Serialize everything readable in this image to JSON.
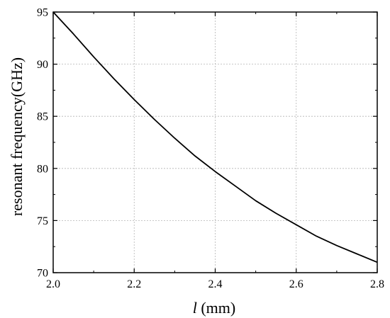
{
  "chart_data": {
    "type": "line",
    "title": "",
    "xlabel_var": "l",
    "xlabel_unit": " (mm)",
    "ylabel": "resonant frequency(GHz)",
    "xlim": [
      2.0,
      2.8
    ],
    "ylim": [
      70,
      95
    ],
    "xticks": [
      2.0,
      2.2,
      2.4,
      2.6,
      2.8
    ],
    "yticks": [
      70,
      75,
      80,
      85,
      90,
      95
    ],
    "xtick_labels": [
      "2.0",
      "2.2",
      "2.4",
      "2.6",
      "2.8"
    ],
    "ytick_labels": [
      "70",
      "75",
      "80",
      "85",
      "90",
      "95"
    ],
    "grid": true,
    "line_color": "#000000",
    "series": [
      {
        "x": [
          2.0,
          2.05,
          2.1,
          2.15,
          2.2,
          2.25,
          2.3,
          2.35,
          2.4,
          2.45,
          2.5,
          2.55,
          2.6,
          2.65,
          2.7,
          2.75,
          2.8
        ],
        "values": [
          95.0,
          92.9,
          90.7,
          88.6,
          86.6,
          84.7,
          82.9,
          81.2,
          79.7,
          78.3,
          76.9,
          75.7,
          74.6,
          73.5,
          72.6,
          71.8,
          71.0
        ]
      }
    ]
  }
}
